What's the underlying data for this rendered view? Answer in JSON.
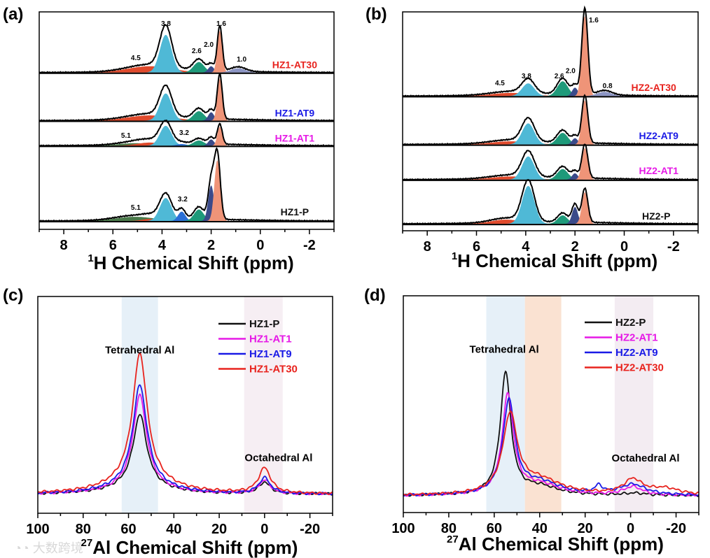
{
  "watermark": "大数跨境",
  "chart_data": [
    {
      "panel": "(a)",
      "type": "line",
      "kind": "fit",
      "xlabel_sup": "1",
      "xlabel": "H Chemical Shift (ppm)",
      "xlim": [
        9,
        -3
      ],
      "ylim": [
        0,
        104
      ],
      "xticks": [
        8,
        6,
        4,
        2,
        0,
        -2
      ],
      "minor_step": 1,
      "spectra": [
        {
          "name": "HZ1-AT30",
          "color": "#e8231e",
          "offset": 75,
          "label_at": [
            -1.4,
            77
          ],
          "components": [
            {
              "center": 4.5,
              "height": 3,
              "width": 0.9,
              "color": "#e04a2c"
            },
            {
              "center": 3.85,
              "height": 18,
              "width": 0.24,
              "color": "#4fb9d6"
            },
            {
              "center": 2.5,
              "height": 5,
              "width": 0.22,
              "color": "#1e9a7a"
            },
            {
              "center": 2.0,
              "height": 3,
              "width": 0.12,
              "color": "#3a4a8a"
            },
            {
              "center": 1.65,
              "height": 20,
              "width": 0.1,
              "color": "#ef9478"
            },
            {
              "center": 0.9,
              "height": 2,
              "width": 0.3,
              "color": "#8c95c4"
            }
          ]
        },
        {
          "name": "HZ1-AT9",
          "color": "#1a1ae6",
          "offset": 52,
          "label_at": [
            -1.4,
            54
          ],
          "components": [
            {
              "center": 4.5,
              "height": 2.5,
              "width": 0.9,
              "color": "#e04a2c"
            },
            {
              "center": 3.85,
              "height": 13,
              "width": 0.24,
              "color": "#4fb9d6"
            },
            {
              "center": 2.5,
              "height": 4.5,
              "width": 0.22,
              "color": "#1e9a7a"
            },
            {
              "center": 2.0,
              "height": 4,
              "width": 0.12,
              "color": "#3a4a8a"
            },
            {
              "center": 1.65,
              "height": 20,
              "width": 0.1,
              "color": "#ef9478"
            }
          ]
        },
        {
          "name": "HZ1-AT1",
          "color": "#e619e6",
          "offset": 40,
          "label_at": [
            -1.4,
            42
          ],
          "components": [
            {
              "center": 5.1,
              "height": 1.2,
              "width": 0.7,
              "color": "#4a7a4a"
            },
            {
              "center": 4.5,
              "height": 1.5,
              "width": 0.5,
              "color": "#e04a2c"
            },
            {
              "center": 3.85,
              "height": 9.5,
              "width": 0.24,
              "color": "#4fb9d6"
            },
            {
              "center": 3.2,
              "height": 0.8,
              "width": 0.2,
              "color": "#2a6fd6"
            },
            {
              "center": 2.5,
              "height": 2.5,
              "width": 0.22,
              "color": "#1e9a7a"
            },
            {
              "center": 2.0,
              "height": 3,
              "width": 0.12,
              "color": "#3a4a8a"
            },
            {
              "center": 1.65,
              "height": 9,
              "width": 0.1,
              "color": "#ef9478"
            }
          ]
        },
        {
          "name": "HZ1-P",
          "color": "#111111",
          "offset": 4,
          "label_at": [
            -1.4,
            6.7
          ],
          "components": [
            {
              "center": 5.1,
              "height": 2,
              "width": 0.8,
              "color": "#4a7a4a"
            },
            {
              "center": 4.5,
              "height": 1,
              "width": 0.3,
              "color": "#e04a2c"
            },
            {
              "center": 3.85,
              "height": 11,
              "width": 0.24,
              "color": "#4fb9d6"
            },
            {
              "center": 3.2,
              "height": 4.5,
              "width": 0.15,
              "color": "#2a6fd6"
            },
            {
              "center": 2.5,
              "height": 5.5,
              "width": 0.2,
              "color": "#1e9a7a"
            },
            {
              "center": 2.0,
              "height": 17,
              "width": 0.12,
              "color": "#3a4a8a"
            },
            {
              "center": 1.75,
              "height": 29,
              "width": 0.12,
              "color": "#ef9478"
            }
          ]
        }
      ],
      "peak_labels": [
        {
          "text": "3.8",
          "at": [
            3.84,
            97.3
          ]
        },
        {
          "text": "1.6",
          "at": [
            1.59,
            97.3
          ]
        },
        {
          "text": "2.6",
          "at": [
            2.59,
            84.3
          ]
        },
        {
          "text": "2.0",
          "at": [
            2.1,
            87.3
          ]
        },
        {
          "text": "4.5",
          "at": [
            5.07,
            81
          ]
        },
        {
          "text": "1.0",
          "at": [
            0.76,
            80.3
          ]
        },
        {
          "text": "5.1",
          "at": [
            5.47,
            43.8
          ]
        },
        {
          "text": "3.2",
          "at": [
            3.1,
            45.2
          ]
        },
        {
          "text": "5.1",
          "at": [
            5.07,
            9.4
          ]
        },
        {
          "text": "3.2",
          "at": [
            3.16,
            13.4
          ]
        }
      ]
    },
    {
      "panel": "(b)",
      "type": "line",
      "kind": "fit",
      "xlabel_sup": "1",
      "xlabel": "H Chemical Shift (ppm)",
      "xlim": [
        9,
        -3
      ],
      "ylim": [
        0,
        104
      ],
      "xticks": [
        8,
        6,
        4,
        2,
        0,
        -2
      ],
      "minor_step": 1,
      "spectra": [
        {
          "name": "HZ2-AT30",
          "color": "#e8231e",
          "offset": 64,
          "label_at": [
            -1.2,
            66.4
          ],
          "components": [
            {
              "center": 4.6,
              "height": 1.5,
              "width": 0.8,
              "color": "#e04a2c"
            },
            {
              "center": 3.9,
              "height": 6,
              "width": 0.25,
              "color": "#4fb9d6"
            },
            {
              "center": 2.5,
              "height": 7,
              "width": 0.22,
              "color": "#1e9a7a"
            },
            {
              "center": 2.0,
              "height": 4,
              "width": 0.12,
              "color": "#3a4a8a"
            },
            {
              "center": 1.6,
              "height": 38,
              "width": 0.12,
              "color": "#ef9478"
            },
            {
              "center": 0.8,
              "height": 2,
              "width": 0.3,
              "color": "#8c95c4"
            }
          ]
        },
        {
          "name": "HZ2-AT9",
          "color": "#1a1ae6",
          "offset": 41,
          "label_at": [
            -1.4,
            43.5
          ],
          "components": [
            {
              "center": 4.6,
              "height": 1.5,
              "width": 0.8,
              "color": "#e04a2c"
            },
            {
              "center": 3.9,
              "height": 10,
              "width": 0.25,
              "color": "#4fb9d6"
            },
            {
              "center": 2.5,
              "height": 5.5,
              "width": 0.22,
              "color": "#1e9a7a"
            },
            {
              "center": 2.0,
              "height": 3,
              "width": 0.12,
              "color": "#3a4a8a"
            },
            {
              "center": 1.6,
              "height": 21,
              "width": 0.12,
              "color": "#ef9478"
            }
          ]
        },
        {
          "name": "HZ2-AT1",
          "color": "#e619e6",
          "offset": 24.3,
          "label_at": [
            -1.4,
            26.9
          ],
          "components": [
            {
              "center": 4.6,
              "height": 1.5,
              "width": 0.8,
              "color": "#e04a2c"
            },
            {
              "center": 3.9,
              "height": 11,
              "width": 0.25,
              "color": "#4fb9d6"
            },
            {
              "center": 2.5,
              "height": 5,
              "width": 0.22,
              "color": "#1e9a7a"
            },
            {
              "center": 2.0,
              "height": 3,
              "width": 0.12,
              "color": "#3a4a8a"
            },
            {
              "center": 1.6,
              "height": 15,
              "width": 0.12,
              "color": "#ef9478"
            }
          ]
        },
        {
          "name": "HZ2-P",
          "color": "#111111",
          "offset": 3.3,
          "label_at": [
            -1.3,
            5.3
          ],
          "components": [
            {
              "center": 4.8,
              "height": 2,
              "width": 0.6,
              "color": "#e04a2c"
            },
            {
              "center": 3.9,
              "height": 18,
              "width": 0.25,
              "color": "#4fb9d6"
            },
            {
              "center": 2.5,
              "height": 4,
              "width": 0.2,
              "color": "#1e9a7a"
            },
            {
              "center": 2.0,
              "height": 8,
              "width": 0.12,
              "color": "#3a4a8a"
            },
            {
              "center": 1.6,
              "height": 15,
              "width": 0.12,
              "color": "#ef9478"
            }
          ]
        }
      ],
      "peak_labels": [
        {
          "text": "1.6",
          "at": [
            1.24,
            99
          ]
        },
        {
          "text": "2.0",
          "at": [
            2.18,
            75
          ]
        },
        {
          "text": "2.6",
          "at": [
            2.64,
            72.4
          ]
        },
        {
          "text": "3.8",
          "at": [
            3.97,
            72.4
          ]
        },
        {
          "text": "4.5",
          "at": [
            5.05,
            69.1
          ]
        },
        {
          "text": "0.8",
          "at": [
            0.68,
            67.8
          ]
        }
      ]
    },
    {
      "panel": "(c)",
      "type": "line",
      "kind": "overlay",
      "xlabel_sup": "27",
      "xlabel": "Al Chemical Shift (ppm)",
      "xlim": [
        100,
        -30
      ],
      "ylim": [
        0,
        103
      ],
      "xticks": [
        100,
        80,
        60,
        40,
        20,
        0,
        -20
      ],
      "minor_step": 10,
      "baseline": 9,
      "bands": [
        {
          "from": 63,
          "to": 47,
          "color": "#e6f0f8"
        },
        {
          "from": 9,
          "to": -8,
          "color": "#f6eef3"
        }
      ],
      "annotations": [
        {
          "text": "Tetrahedral Al",
          "at": [
            55,
            76
          ]
        },
        {
          "text": "Octahedral Al",
          "at": [
            -6.2,
            24.7
          ]
        }
      ],
      "spectra": [
        {
          "name": "HZ1-P",
          "color": "#111111",
          "peaks": [
            {
              "center": 55,
              "height": 34,
              "width": 3.6
            },
            {
              "center": 55,
              "height": 4,
              "width": 14
            },
            {
              "center": 0,
              "height": 5.5,
              "width": 3
            }
          ]
        },
        {
          "name": "HZ1-AT1",
          "color": "#e619e6",
          "peaks": [
            {
              "center": 55,
              "height": 43,
              "width": 3.6
            },
            {
              "center": 55,
              "height": 4,
              "width": 14
            },
            {
              "center": 0,
              "height": 6.5,
              "width": 3
            }
          ]
        },
        {
          "name": "HZ1-AT9",
          "color": "#1a1ae6",
          "peaks": [
            {
              "center": 55,
              "height": 47,
              "width": 3.7
            },
            {
              "center": 55,
              "height": 5,
              "width": 14
            },
            {
              "center": 0,
              "height": 7.5,
              "width": 3
            }
          ]
        },
        {
          "name": "HZ1-AT30",
          "color": "#e8231e",
          "peaks": [
            {
              "center": 55,
              "height": 60,
              "width": 3.8
            },
            {
              "center": 55,
              "height": 7,
              "width": 15
            },
            {
              "center": 0,
              "height": 12,
              "width": 3.2
            }
          ]
        }
      ]
    },
    {
      "panel": "(d)",
      "type": "line",
      "kind": "overlay",
      "xlabel_sup": "27",
      "xlabel": "Al Chemical Shift (ppm)",
      "xlim": [
        100,
        -30
      ],
      "ylim": [
        0,
        103
      ],
      "xticks": [
        100,
        80,
        60,
        40,
        20,
        0,
        -20
      ],
      "minor_step": 10,
      "baseline": 8,
      "bands": [
        {
          "from": 63.5,
          "to": 46.5,
          "color": "#e6f0f8"
        },
        {
          "from": 46.5,
          "to": 30.5,
          "color": "#fae2d2"
        },
        {
          "from": 7,
          "to": -10,
          "color": "#f3ecf2"
        }
      ],
      "annotations": [
        {
          "text": "Tetrahedral Al",
          "at": [
            55.6,
            76
          ]
        },
        {
          "text": "Octahedral Al",
          "at": [
            -6.6,
            24.3
          ]
        }
      ],
      "spectra": [
        {
          "name": "HZ2-P",
          "color": "#111111",
          "peaks": [
            {
              "center": 55,
              "height": 58,
              "width": 2.8
            },
            {
              "center": 40,
              "height": 4,
              "width": 10
            },
            {
              "center": -2,
              "height": 1,
              "width": 6
            }
          ]
        },
        {
          "name": "HZ2-AT1",
          "color": "#e619e6",
          "peaks": [
            {
              "center": 54,
              "height": 47,
              "width": 3
            },
            {
              "center": 40,
              "height": 5,
              "width": 11
            },
            {
              "center": -1,
              "height": 4,
              "width": 5
            }
          ]
        },
        {
          "name": "HZ2-AT9",
          "color": "#1a1ae6",
          "peaks": [
            {
              "center": 53.5,
              "height": 44,
              "width": 3.2
            },
            {
              "center": 40,
              "height": 6,
              "width": 11
            },
            {
              "center": -1,
              "height": 5,
              "width": 7
            },
            {
              "center": 14,
              "height": 3.5,
              "width": 2
            }
          ]
        },
        {
          "name": "HZ2-AT30",
          "color": "#e8231e",
          "peaks": [
            {
              "center": 53,
              "height": 37,
              "width": 3.8
            },
            {
              "center": 40,
              "height": 7,
              "width": 12
            },
            {
              "center": -1,
              "height": 7,
              "width": 5
            },
            {
              "center": -15,
              "height": 3,
              "width": 8
            }
          ]
        }
      ]
    }
  ]
}
